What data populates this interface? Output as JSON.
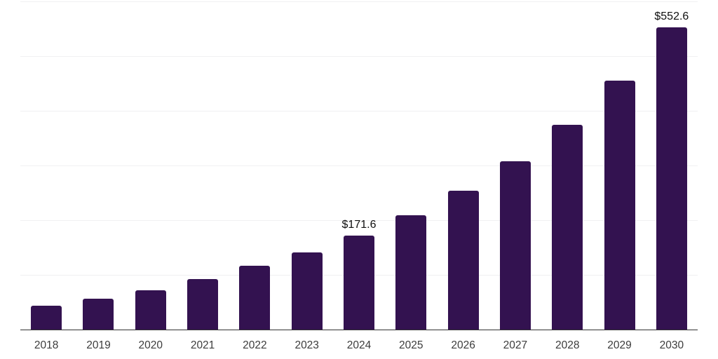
{
  "page": {
    "background": "#ffffff"
  },
  "chart_data": {
    "type": "bar",
    "title": "",
    "xlabel": "",
    "ylabel": "",
    "categories": [
      "2018",
      "2019",
      "2020",
      "2021",
      "2022",
      "2023",
      "2024",
      "2025",
      "2026",
      "2027",
      "2028",
      "2029",
      "2030"
    ],
    "values": [
      43.4,
      56.5,
      71.2,
      92.1,
      116.5,
      141.1,
      171.6,
      208.5,
      253.4,
      308.0,
      374.3,
      454.9,
      552.6
    ],
    "data_labels": {
      "2024": "$171.6",
      "2030": "$552.6"
    },
    "ylim": [
      0,
      600
    ],
    "gridline_values": [
      100,
      200,
      300,
      400,
      500,
      600
    ],
    "grid": true,
    "legend": false,
    "y_axis_labels_visible": false,
    "colors": {
      "bar": "#331250",
      "gridline": "#f0f0f2",
      "axis_line": "#333333",
      "tick_label": "#3c3c3c",
      "value_label": "#0f0f0f"
    }
  }
}
